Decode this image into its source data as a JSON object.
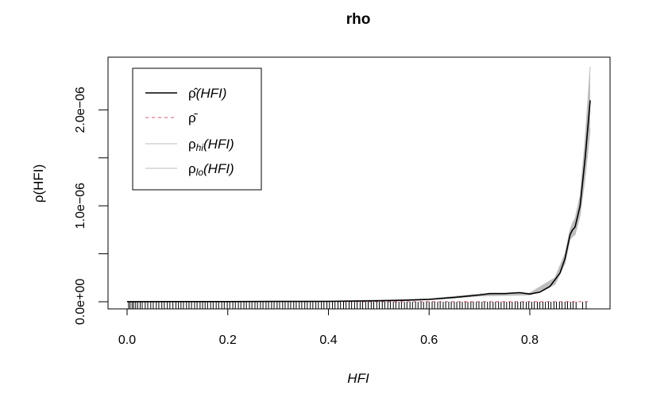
{
  "chart_data": {
    "type": "line",
    "title": "rho",
    "xlabel": "HFI",
    "ylabel": "ρ(HFI)",
    "xlim": [
      0,
      0.92
    ],
    "ylim": [
      0,
      2.45e-06
    ],
    "x_ticks": [
      {
        "value": 0.0,
        "label": "0.0"
      },
      {
        "value": 0.2,
        "label": "0.2"
      },
      {
        "value": 0.4,
        "label": "0.4"
      },
      {
        "value": 0.6,
        "label": "0.6"
      },
      {
        "value": 0.8,
        "label": "0.8"
      }
    ],
    "y_ticks": [
      {
        "value": 0,
        "label": "0.0e+00"
      },
      {
        "value": 5e-07,
        "label": ""
      },
      {
        "value": 1e-06,
        "label": "1.0e−06"
      },
      {
        "value": 1.5e-06,
        "label": ""
      },
      {
        "value": 2e-06,
        "label": "2.0e−06"
      }
    ],
    "grid": false,
    "legend_position": "top-left",
    "legend": [
      {
        "id": "rho_hat",
        "label_base": "ρ̂",
        "label_sub": "",
        "label_arg": "(HFI)",
        "style": "solid",
        "color": "#000000"
      },
      {
        "id": "rho_bar",
        "label_base": "ρ̄",
        "label_sub": "",
        "label_arg": "",
        "style": "dashed",
        "color": "#DF536B"
      },
      {
        "id": "rho_hi",
        "label_base": "ρ",
        "label_sub": "hi",
        "label_arg": "(HFI)",
        "style": "solid",
        "color": "#BEBEBE"
      },
      {
        "id": "rho_lo",
        "label_base": "ρ",
        "label_sub": "lo",
        "label_arg": "(HFI)",
        "style": "solid",
        "color": "#BEBEBE"
      }
    ],
    "rho_bar": 1.5e-09,
    "series": [
      {
        "name": "ρ̂(HFI)",
        "x": [
          0.0,
          0.1,
          0.2,
          0.3,
          0.4,
          0.5,
          0.55,
          0.6,
          0.65,
          0.7,
          0.72,
          0.75,
          0.78,
          0.8,
          0.82,
          0.84,
          0.86,
          0.87,
          0.88,
          0.885,
          0.89,
          0.9,
          0.91,
          0.92
        ],
        "y": [
          1e-09,
          1.5e-09,
          2e-09,
          3e-09,
          4e-09,
          1e-08,
          1.5e-08,
          2.5e-08,
          4.5e-08,
          7e-08,
          8.5e-08,
          8.5e-08,
          9.5e-08,
          8e-08,
          1e-07,
          1.6e-07,
          3e-07,
          4.5e-07,
          7e-07,
          7.5e-07,
          7.8e-07,
          1e-06,
          1.5e-06,
          2.1e-06
        ]
      },
      {
        "name": "ρhi(HFI)",
        "x": [
          0.0,
          0.4,
          0.6,
          0.7,
          0.8,
          0.85,
          0.87,
          0.88,
          0.885,
          0.89,
          0.9,
          0.91,
          0.92
        ],
        "y": [
          2e-09,
          6e-09,
          3e-08,
          8e-08,
          9e-08,
          2.5e-07,
          5e-07,
          7.5e-07,
          8.2e-07,
          8.7e-07,
          1.1e-06,
          1.7e-06,
          2.45e-06
        ]
      },
      {
        "name": "ρlo(HFI)",
        "x": [
          0.0,
          0.4,
          0.6,
          0.7,
          0.8,
          0.85,
          0.87,
          0.88,
          0.885,
          0.89,
          0.9,
          0.91,
          0.92
        ],
        "y": [
          0,
          2e-09,
          2e-08,
          6e-08,
          7e-08,
          1.8e-07,
          4e-07,
          6.5e-07,
          6.8e-07,
          7e-07,
          9e-07,
          1.3e-06,
          1.8e-06
        ]
      }
    ],
    "rug_x": [
      0.003,
      0.006,
      0.01,
      0.013,
      0.017,
      0.021,
      0.026,
      0.03,
      0.036,
      0.041,
      0.047,
      0.052,
      0.058,
      0.063,
      0.069,
      0.074,
      0.08,
      0.085,
      0.091,
      0.097,
      0.102,
      0.107,
      0.112,
      0.118,
      0.123,
      0.128,
      0.134,
      0.139,
      0.145,
      0.15,
      0.155,
      0.16,
      0.166,
      0.171,
      0.177,
      0.182,
      0.188,
      0.193,
      0.199,
      0.204,
      0.21,
      0.215,
      0.221,
      0.226,
      0.232,
      0.237,
      0.243,
      0.248,
      0.254,
      0.259,
      0.265,
      0.27,
      0.276,
      0.281,
      0.287,
      0.292,
      0.298,
      0.303,
      0.309,
      0.314,
      0.32,
      0.325,
      0.331,
      0.336,
      0.342,
      0.347,
      0.353,
      0.358,
      0.364,
      0.369,
      0.375,
      0.38,
      0.386,
      0.391,
      0.397,
      0.402,
      0.408,
      0.413,
      0.419,
      0.424,
      0.43,
      0.435,
      0.441,
      0.446,
      0.452,
      0.457,
      0.463,
      0.468,
      0.474,
      0.479,
      0.485,
      0.49,
      0.496,
      0.501,
      0.507,
      0.512,
      0.518,
      0.523,
      0.529,
      0.534,
      0.54,
      0.545,
      0.551,
      0.556,
      0.562,
      0.567,
      0.573,
      0.578,
      0.584,
      0.589,
      0.595,
      0.6,
      0.606,
      0.611,
      0.617,
      0.622,
      0.628,
      0.633,
      0.639,
      0.644,
      0.65,
      0.655,
      0.661,
      0.666,
      0.672,
      0.677,
      0.683,
      0.688,
      0.694,
      0.699,
      0.705,
      0.71,
      0.716,
      0.721,
      0.727,
      0.732,
      0.738,
      0.743,
      0.749,
      0.754,
      0.76,
      0.765,
      0.771,
      0.776,
      0.782,
      0.787,
      0.793,
      0.798,
      0.804,
      0.809,
      0.815,
      0.82,
      0.826,
      0.831,
      0.837,
      0.842,
      0.848,
      0.853,
      0.859,
      0.864,
      0.87,
      0.875,
      0.881,
      0.886,
      0.892,
      0.905,
      0.912
    ]
  }
}
